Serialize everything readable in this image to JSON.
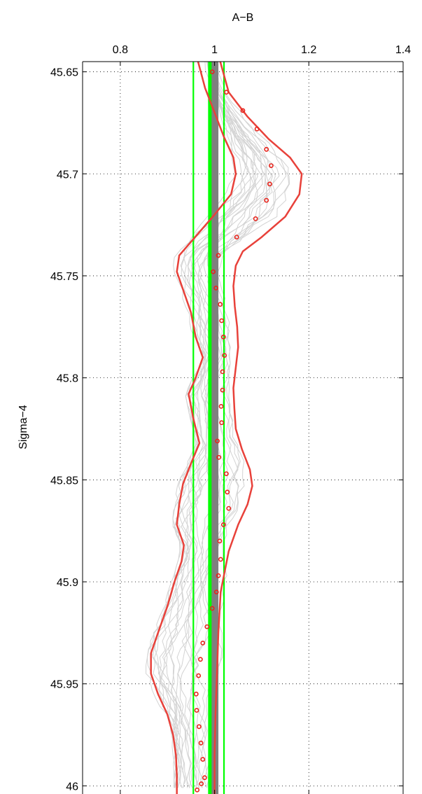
{
  "chart_data": {
    "type": "line",
    "xlabel": "A−B",
    "ylabel": "Sigma−4",
    "x_axis_position": "top",
    "y_axis_direction": "reversed",
    "xlim": [
      0.72,
      1.4
    ],
    "ylim": [
      45.645,
      46.004
    ],
    "xticks": [
      0.8,
      1,
      1.2,
      1.4
    ],
    "xtick_labels": [
      "0.8",
      "1",
      "1.2",
      "1.4"
    ],
    "yticks": [
      45.65,
      45.7,
      45.75,
      45.8,
      45.85,
      45.9,
      45.95,
      46
    ],
    "ytick_labels": [
      "45.65",
      "45.7",
      "45.75",
      "45.8",
      "45.85",
      "45.9",
      "45.95",
      "46"
    ],
    "grid": "dotted",
    "colors": {
      "background_lines": "#d3d3d3",
      "bounds": "#e8413a",
      "markers": "#e8241c",
      "reference_band": "#7f7f7f",
      "reference_lines": "#00ff00",
      "axes": "#000000"
    },
    "reference_band": {
      "x": 1.0,
      "y_range": [
        45.645,
        46.004
      ]
    },
    "reference_lines": [
      0.955,
      0.99,
      1.02
    ],
    "series": [
      {
        "role": "mean-markers",
        "marker": "circle",
        "points": [
          [
            0.995,
            45.65
          ],
          [
            1.025,
            45.66
          ],
          [
            1.06,
            45.669
          ],
          [
            1.09,
            45.678
          ],
          [
            1.11,
            45.688
          ],
          [
            1.12,
            45.696
          ],
          [
            1.117,
            45.705
          ],
          [
            1.11,
            45.713
          ],
          [
            1.087,
            45.722
          ],
          [
            1.047,
            45.731
          ],
          [
            1.008,
            45.74
          ],
          [
            0.997,
            45.748
          ],
          [
            1.003,
            45.756
          ],
          [
            1.012,
            45.764
          ],
          [
            1.015,
            45.772
          ],
          [
            1.019,
            45.78
          ],
          [
            1.021,
            45.789
          ],
          [
            1.017,
            45.797
          ],
          [
            1.017,
            45.806
          ],
          [
            1.014,
            45.814
          ],
          [
            1.015,
            45.822
          ],
          [
            1.006,
            45.831
          ],
          [
            1.009,
            45.839
          ],
          [
            1.025,
            45.847
          ],
          [
            1.027,
            45.856
          ],
          [
            1.03,
            45.864
          ],
          [
            1.019,
            45.872
          ],
          [
            1.011,
            45.88
          ],
          [
            1.013,
            45.889
          ],
          [
            1.008,
            45.897
          ],
          [
            1.004,
            45.905
          ],
          [
            0.995,
            45.913
          ],
          [
            0.984,
            45.922
          ],
          [
            0.975,
            45.93
          ],
          [
            0.97,
            45.938
          ],
          [
            0.966,
            45.946
          ],
          [
            0.961,
            45.955
          ],
          [
            0.962,
            45.963
          ],
          [
            0.967,
            45.971
          ],
          [
            0.971,
            45.979
          ],
          [
            0.975,
            45.987
          ],
          [
            0.979,
            45.996
          ],
          [
            0.972,
            45.999
          ],
          [
            0.963,
            46.002
          ]
        ]
      },
      {
        "role": "upper-bound",
        "points": [
          [
            1.012,
            45.645
          ],
          [
            1.03,
            45.66
          ],
          [
            1.07,
            45.672
          ],
          [
            1.115,
            45.683
          ],
          [
            1.16,
            45.692
          ],
          [
            1.185,
            45.7
          ],
          [
            1.18,
            45.71
          ],
          [
            1.15,
            45.721
          ],
          [
            1.1,
            45.731
          ],
          [
            1.06,
            45.738
          ],
          [
            1.045,
            45.745
          ],
          [
            1.04,
            45.755
          ],
          [
            1.043,
            45.765
          ],
          [
            1.048,
            45.775
          ],
          [
            1.05,
            45.785
          ],
          [
            1.045,
            45.795
          ],
          [
            1.04,
            45.805
          ],
          [
            1.042,
            45.815
          ],
          [
            1.045,
            45.825
          ],
          [
            1.058,
            45.835
          ],
          [
            1.075,
            45.845
          ],
          [
            1.08,
            45.853
          ],
          [
            1.07,
            45.862
          ],
          [
            1.05,
            45.872
          ],
          [
            1.03,
            45.885
          ],
          [
            1.013,
            45.905
          ],
          [
            1.008,
            45.925
          ],
          [
            1.005,
            45.945
          ],
          [
            1.002,
            45.965
          ],
          [
            1.0,
            45.985
          ],
          [
            1.0,
            46.004
          ]
        ]
      },
      {
        "role": "lower-bound",
        "points": [
          [
            0.965,
            45.645
          ],
          [
            0.98,
            45.658
          ],
          [
            1.0,
            45.67
          ],
          [
            1.02,
            45.682
          ],
          [
            1.04,
            45.692
          ],
          [
            1.045,
            45.7
          ],
          [
            1.035,
            45.71
          ],
          [
            1.0,
            45.72
          ],
          [
            0.955,
            45.732
          ],
          [
            0.925,
            45.74
          ],
          [
            0.92,
            45.748
          ],
          [
            0.935,
            45.758
          ],
          [
            0.95,
            45.768
          ],
          [
            0.96,
            45.78
          ],
          [
            0.975,
            45.79
          ],
          [
            0.96,
            45.8
          ],
          [
            0.945,
            45.808
          ],
          [
            0.955,
            45.82
          ],
          [
            0.968,
            45.832
          ],
          [
            0.95,
            45.842
          ],
          [
            0.933,
            45.852
          ],
          [
            0.925,
            45.862
          ],
          [
            0.92,
            45.872
          ],
          [
            0.935,
            45.882
          ],
          [
            0.93,
            45.89
          ],
          [
            0.915,
            45.9
          ],
          [
            0.9,
            45.912
          ],
          [
            0.88,
            45.925
          ],
          [
            0.865,
            45.935
          ],
          [
            0.865,
            45.945
          ],
          [
            0.88,
            45.955
          ],
          [
            0.9,
            45.965
          ],
          [
            0.912,
            45.975
          ],
          [
            0.918,
            45.985
          ],
          [
            0.92,
            45.995
          ],
          [
            0.92,
            46.004
          ]
        ]
      }
    ]
  }
}
